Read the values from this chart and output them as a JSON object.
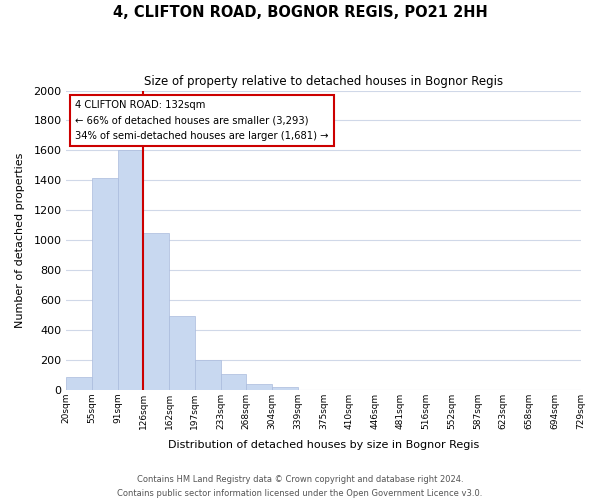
{
  "title": "4, CLIFTON ROAD, BOGNOR REGIS, PO21 2HH",
  "subtitle": "Size of property relative to detached houses in Bognor Regis",
  "xlabel": "Distribution of detached houses by size in Bognor Regis",
  "ylabel": "Number of detached properties",
  "bin_labels": [
    "20sqm",
    "55sqm",
    "91sqm",
    "126sqm",
    "162sqm",
    "197sqm",
    "233sqm",
    "268sqm",
    "304sqm",
    "339sqm",
    "375sqm",
    "410sqm",
    "446sqm",
    "481sqm",
    "516sqm",
    "552sqm",
    "587sqm",
    "623sqm",
    "658sqm",
    "694sqm",
    "729sqm"
  ],
  "bar_values": [
    85,
    1415,
    1600,
    1050,
    490,
    200,
    105,
    38,
    20,
    0,
    0,
    0,
    0,
    0,
    0,
    0,
    0,
    0,
    0,
    0
  ],
  "bar_color": "#c8d8f0",
  "property_line_x": 3,
  "annotation_title": "4 CLIFTON ROAD: 132sqm",
  "annotation_line1": "← 66% of detached houses are smaller (3,293)",
  "annotation_line2": "34% of semi-detached houses are larger (1,681) →",
  "annotation_box_color": "#ffffff",
  "annotation_box_edge": "#cc0000",
  "vline_color": "#cc0000",
  "ylim": [
    0,
    2000
  ],
  "yticks": [
    0,
    200,
    400,
    600,
    800,
    1000,
    1200,
    1400,
    1600,
    1800,
    2000
  ],
  "footer_line1": "Contains HM Land Registry data © Crown copyright and database right 2024.",
  "footer_line2": "Contains public sector information licensed under the Open Government Licence v3.0.",
  "bg_color": "#ffffff",
  "grid_color": "#d0d8e8"
}
